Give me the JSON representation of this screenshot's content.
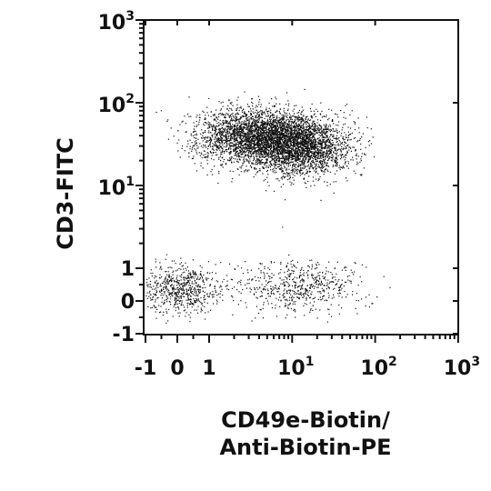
{
  "chart_data": {
    "type": "scatter",
    "title": "",
    "xlabel_lines": [
      "CD49e-Biotin/",
      "Anti-Biotin-PE"
    ],
    "ylabel": "CD3-FITC",
    "scale": "biexponential",
    "xlim": [
      -1,
      1000
    ],
    "ylim": [
      -1,
      1000
    ],
    "x_ticks": [
      {
        "value": -1,
        "base": "-1",
        "exp": ""
      },
      {
        "value": 0,
        "base": "0",
        "exp": ""
      },
      {
        "value": 1,
        "base": "1",
        "exp": ""
      },
      {
        "value": 10,
        "base": "10",
        "exp": "1"
      },
      {
        "value": 100,
        "base": "10",
        "exp": "2"
      },
      {
        "value": 1000,
        "base": "10",
        "exp": "3"
      }
    ],
    "y_ticks": [
      {
        "value": -1,
        "base": "-1",
        "exp": ""
      },
      {
        "value": 0,
        "base": "0",
        "exp": ""
      },
      {
        "value": 1,
        "base": "1",
        "exp": ""
      },
      {
        "value": 10,
        "base": "10",
        "exp": "1"
      },
      {
        "value": 100,
        "base": "10",
        "exp": "2"
      },
      {
        "value": 1000,
        "base": "10",
        "exp": "3"
      }
    ],
    "grid": false,
    "point_color": "#111111",
    "populations": [
      {
        "x_center": 3.5,
        "y_center": 40,
        "x_spread_decades": 0.35,
        "y_spread_decades": 0.17,
        "count": 2800
      },
      {
        "x_center": 12,
        "y_center": 30,
        "x_spread_decades": 0.3,
        "y_spread_decades": 0.17,
        "count": 2600
      },
      {
        "x_center": 0.1,
        "y_center": 0.4,
        "x_spread_decades": 0.25,
        "y_spread_decades": 0.15,
        "count": 700
      },
      {
        "x_center": 12,
        "y_center": 0.45,
        "x_spread_decades": 0.35,
        "y_spread_decades": 0.15,
        "count": 600
      }
    ]
  }
}
